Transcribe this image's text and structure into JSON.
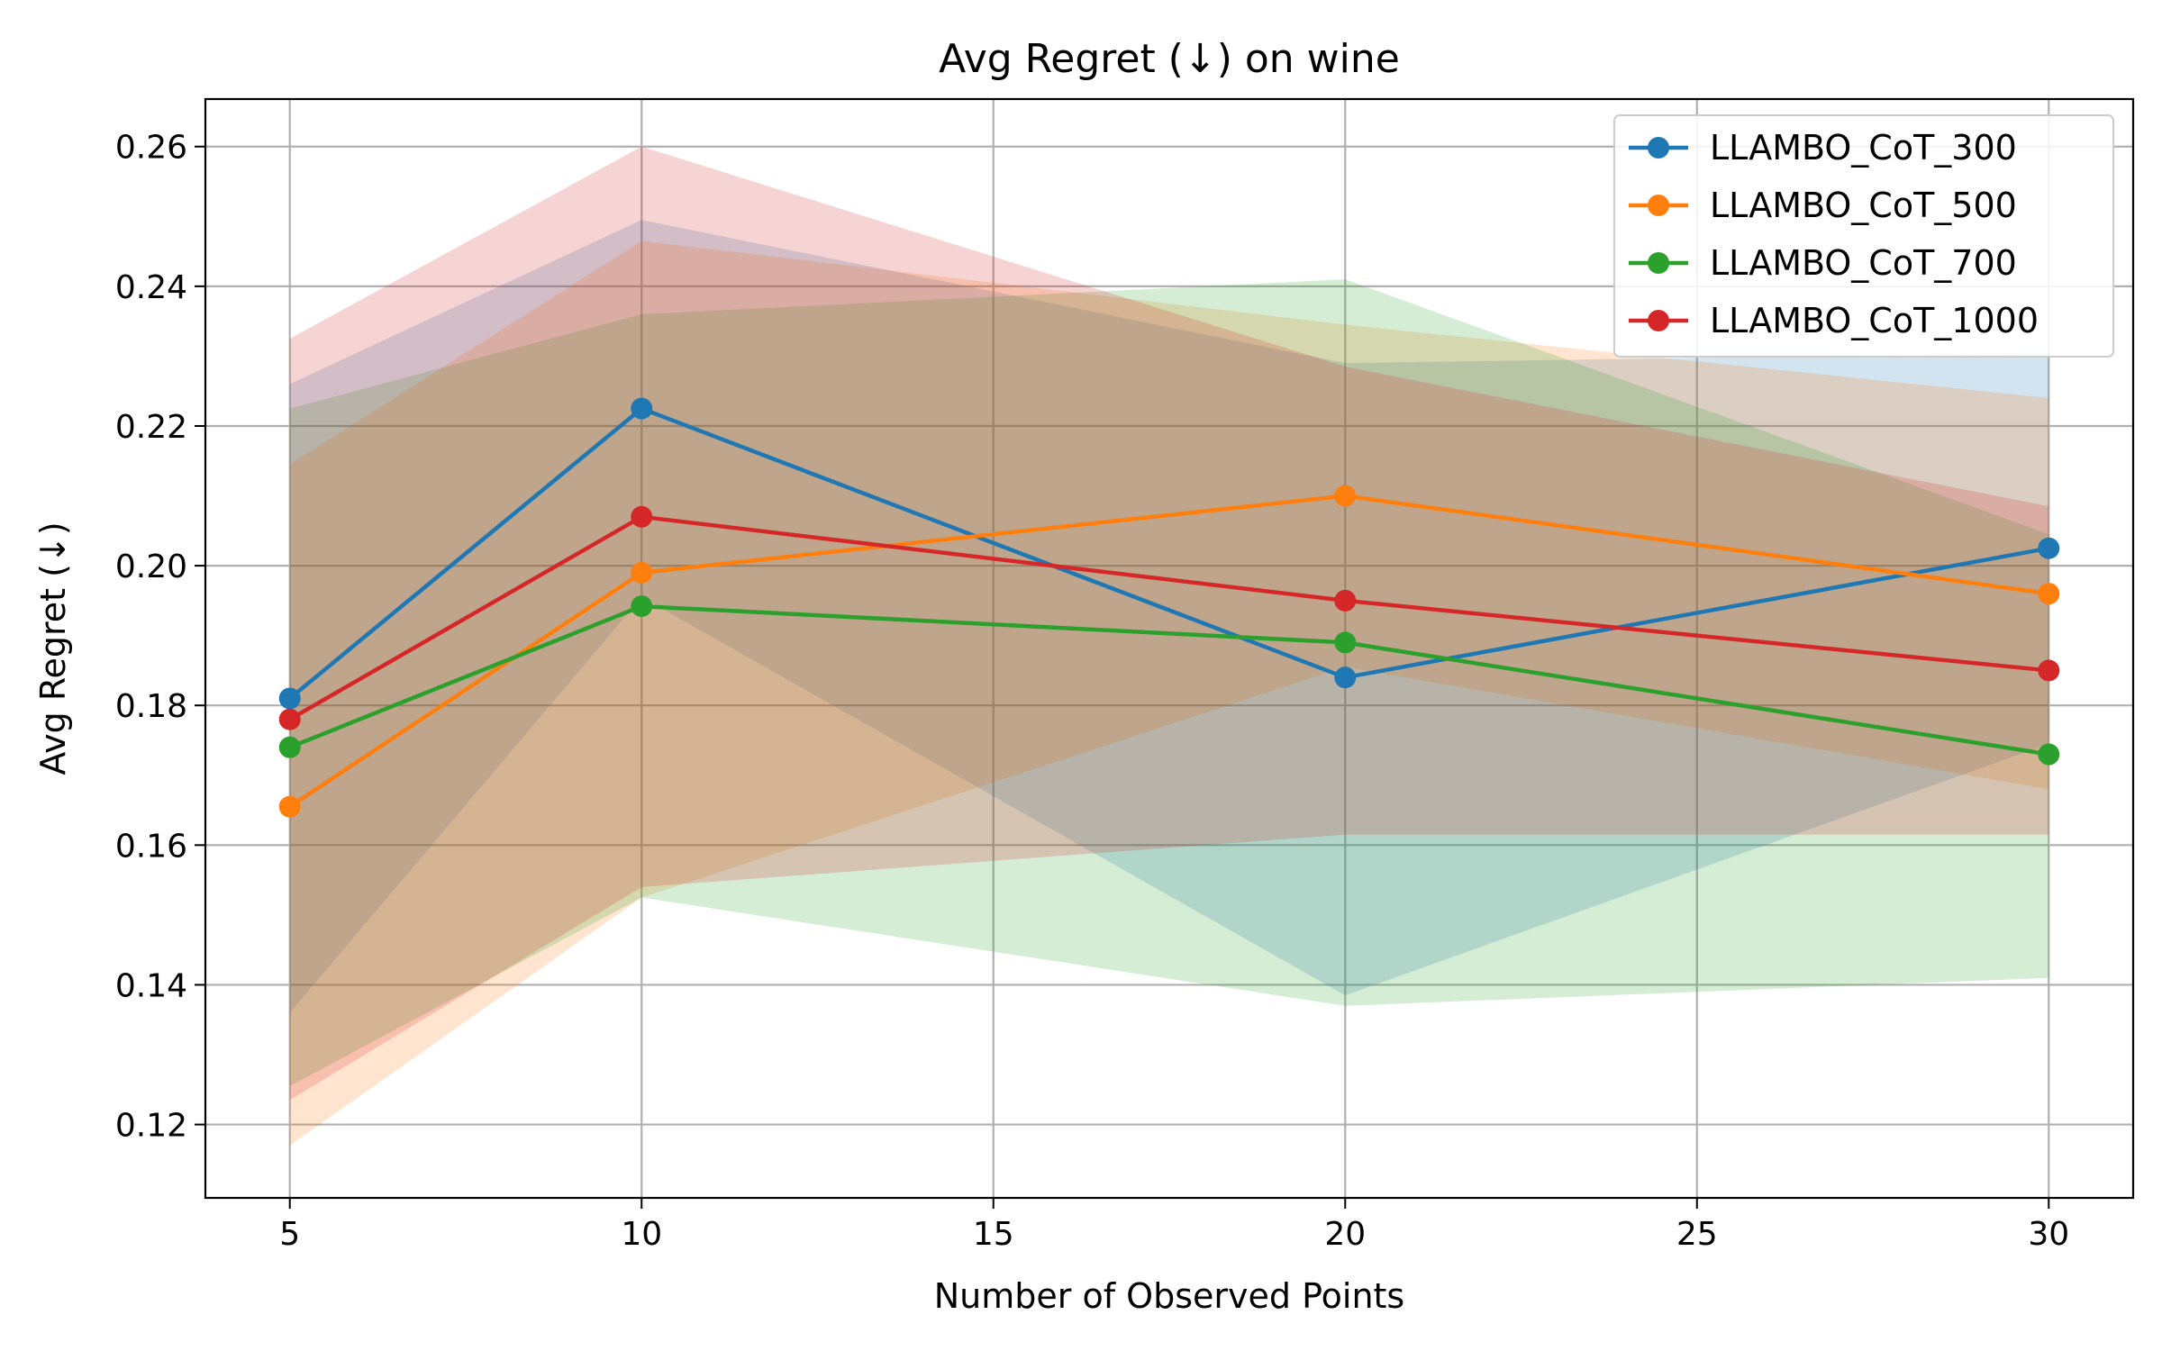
{
  "chart_data": {
    "type": "line",
    "title": "Avg Regret (↓) on wine",
    "xlabel": "Number of Observed Points",
    "ylabel": "Avg Regret (↓)",
    "xlim": [
      3.8,
      31.2
    ],
    "ylim": [
      0.1095,
      0.2668
    ],
    "xticks": [
      5,
      10,
      15,
      20,
      25,
      30
    ],
    "yticks": [
      0.12,
      0.14,
      0.16,
      0.18,
      0.2,
      0.22,
      0.24,
      0.26
    ],
    "xtick_labels": [
      "5",
      "10",
      "15",
      "20",
      "25",
      "30"
    ],
    "ytick_labels": [
      "0.12",
      "0.14",
      "0.16",
      "0.18",
      "0.20",
      "0.22",
      "0.24",
      "0.26"
    ],
    "grid": true,
    "legend_position": "top-right",
    "x": [
      5,
      10,
      20,
      30
    ],
    "series": [
      {
        "name": "LLAMBO_CoT_300",
        "color": "#1f77b4",
        "values": [
          0.181,
          0.2225,
          0.184,
          0.2025
        ],
        "band_upper": [
          0.226,
          0.2495,
          0.229,
          0.2305
        ],
        "band_lower": [
          0.136,
          0.1955,
          0.1385,
          0.1745
        ]
      },
      {
        "name": "LLAMBO_CoT_500",
        "color": "#ff7f0e",
        "values": [
          0.1655,
          0.199,
          0.21,
          0.196
        ],
        "band_upper": [
          0.2145,
          0.2465,
          0.2345,
          0.224
        ],
        "band_lower": [
          0.117,
          0.1525,
          0.1855,
          0.168
        ]
      },
      {
        "name": "LLAMBO_CoT_700",
        "color": "#2ca02c",
        "values": [
          0.174,
          0.1942,
          0.189,
          0.173
        ],
        "band_upper": [
          0.2225,
          0.236,
          0.241,
          0.2045
        ],
        "band_lower": [
          0.1255,
          0.1525,
          0.137,
          0.141
        ]
      },
      {
        "name": "LLAMBO_CoT_1000",
        "color": "#d62728",
        "values": [
          0.178,
          0.207,
          0.195,
          0.185
        ],
        "band_upper": [
          0.2325,
          0.26,
          0.2285,
          0.2085
        ],
        "band_lower": [
          0.1235,
          0.154,
          0.1615,
          0.1615
        ]
      }
    ]
  }
}
